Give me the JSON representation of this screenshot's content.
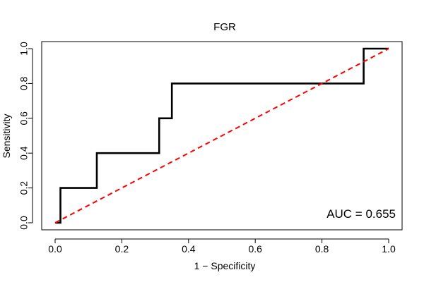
{
  "chart_data": {
    "type": "line",
    "title": "FGR",
    "xlabel": "1 − Specificity",
    "ylabel": "Sensitivity",
    "xlim": [
      0,
      1
    ],
    "ylim": [
      0,
      1
    ],
    "x_ticks": [
      0,
      0.2,
      0.4,
      0.6,
      0.8,
      1
    ],
    "x_tick_labels": [
      "0.0",
      "0.2",
      "0.4",
      "0.6",
      "0.8",
      "1.0"
    ],
    "y_ticks": [
      0,
      0.2,
      0.4,
      0.6,
      0.8,
      1
    ],
    "y_tick_labels": [
      "0.0",
      "0.2",
      "0.4",
      "0.6",
      "0.8",
      "1.0"
    ],
    "grid": false,
    "series": [
      {
        "color": "#000000",
        "style": "solid",
        "step": true,
        "points": [
          [
            0.0,
            0.0
          ],
          [
            0.016,
            0.0
          ],
          [
            0.016,
            0.2
          ],
          [
            0.125,
            0.2
          ],
          [
            0.125,
            0.4
          ],
          [
            0.312,
            0.4
          ],
          [
            0.312,
            0.6
          ],
          [
            0.35,
            0.6
          ],
          [
            0.35,
            0.8
          ],
          [
            0.925,
            0.8
          ],
          [
            0.925,
            1.0
          ],
          [
            1.0,
            1.0
          ]
        ]
      },
      {
        "color": "#ff0000",
        "style": "dashed",
        "step": false,
        "points": [
          [
            0.0,
            0.0
          ],
          [
            1.0,
            1.0
          ]
        ]
      }
    ],
    "annotations": [
      {
        "text": "AUC = 0.655",
        "position": "bottom-right"
      }
    ]
  }
}
